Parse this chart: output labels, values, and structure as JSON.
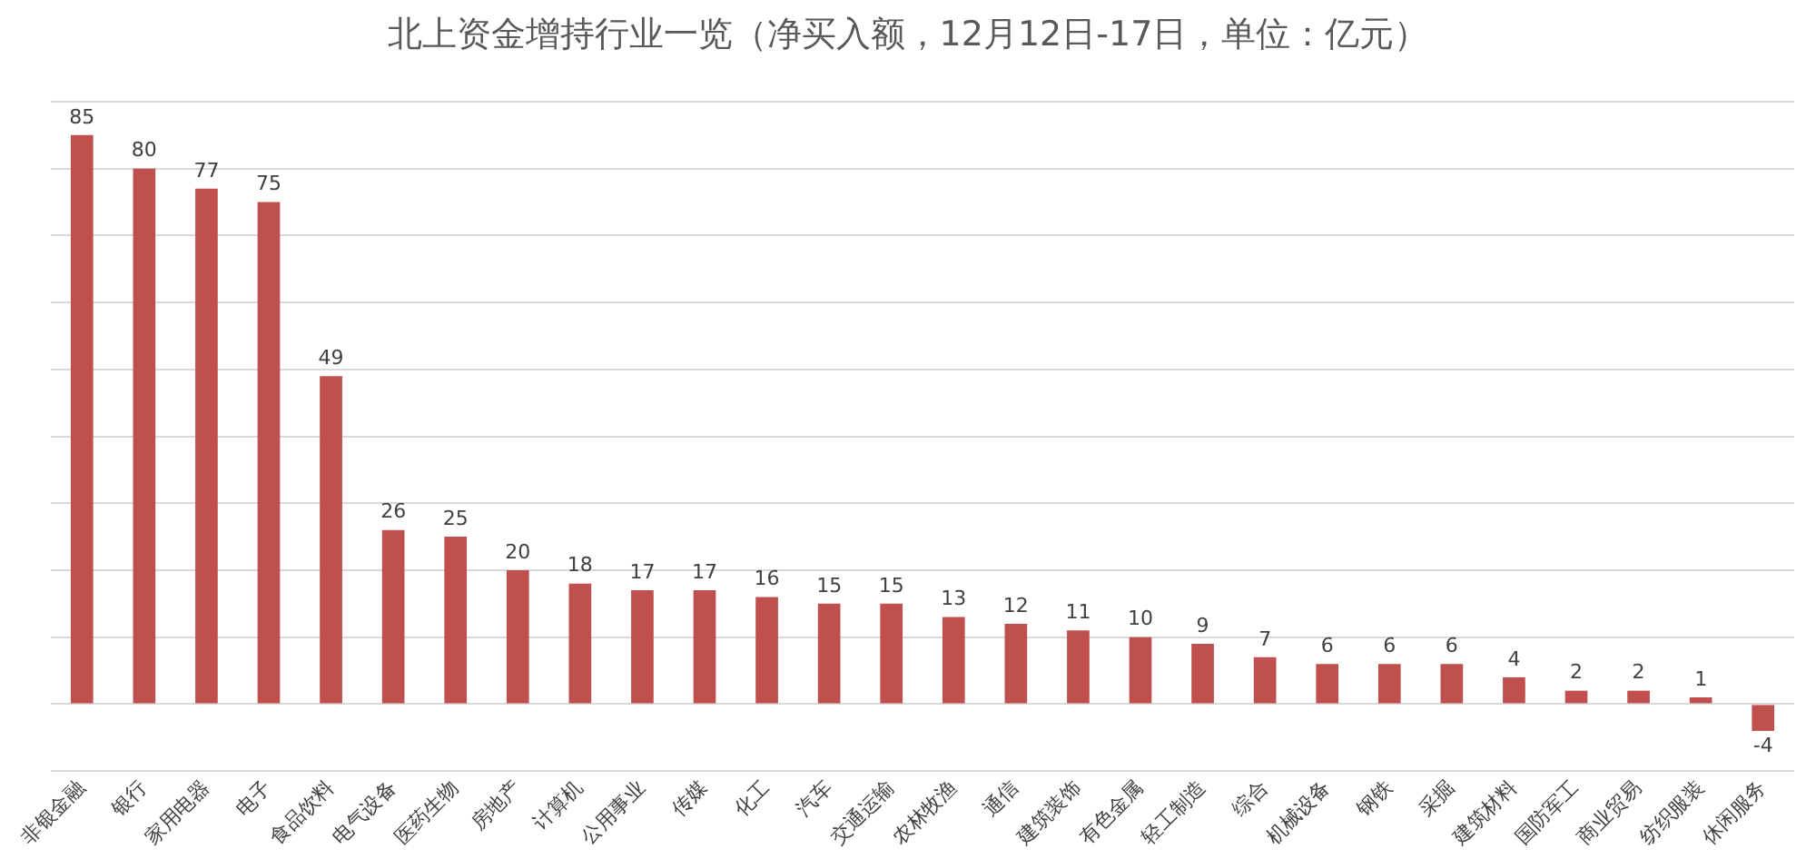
{
  "chart_data": {
    "type": "bar",
    "title": "北上资金增持行业一览（净买入额，12月12日-17日，单位：亿元）",
    "categories": [
      "非银金融",
      "银行",
      "家用电器",
      "电子",
      "食品饮料",
      "电气设备",
      "医药生物",
      "房地产",
      "计算机",
      "公用事业",
      "传媒",
      "化工",
      "汽车",
      "交通运输",
      "农林牧渔",
      "通信",
      "建筑装饰",
      "有色金属",
      "轻工制造",
      "综合",
      "机械设备",
      "钢铁",
      "采掘",
      "建筑材料",
      "国防军工",
      "商业贸易",
      "纺织服装",
      "休闲服务"
    ],
    "values": [
      85,
      80,
      77,
      75,
      49,
      26,
      25,
      20,
      18,
      17,
      17,
      16,
      15,
      15,
      13,
      12,
      11,
      10,
      9,
      7,
      6,
      6,
      6,
      4,
      2,
      2,
      1,
      -4
    ],
    "color": "#c0504d",
    "ylim": [
      -10,
      90
    ],
    "yticks": [
      {
        "value": -10,
        "label": null
      },
      {
        "value": 0,
        "label": null
      },
      {
        "value": 10,
        "label": null
      },
      {
        "value": 20,
        "label": null
      },
      {
        "value": 30,
        "label": null
      },
      {
        "value": 40,
        "label": null
      },
      {
        "value": 50,
        "label": null
      },
      {
        "value": 60,
        "label": null
      },
      {
        "value": 70,
        "label": null
      },
      {
        "value": 80,
        "label": null
      },
      {
        "value": 90,
        "label": null
      }
    ],
    "tick_labels": "x",
    "grid": "y",
    "data_labels": true
  }
}
